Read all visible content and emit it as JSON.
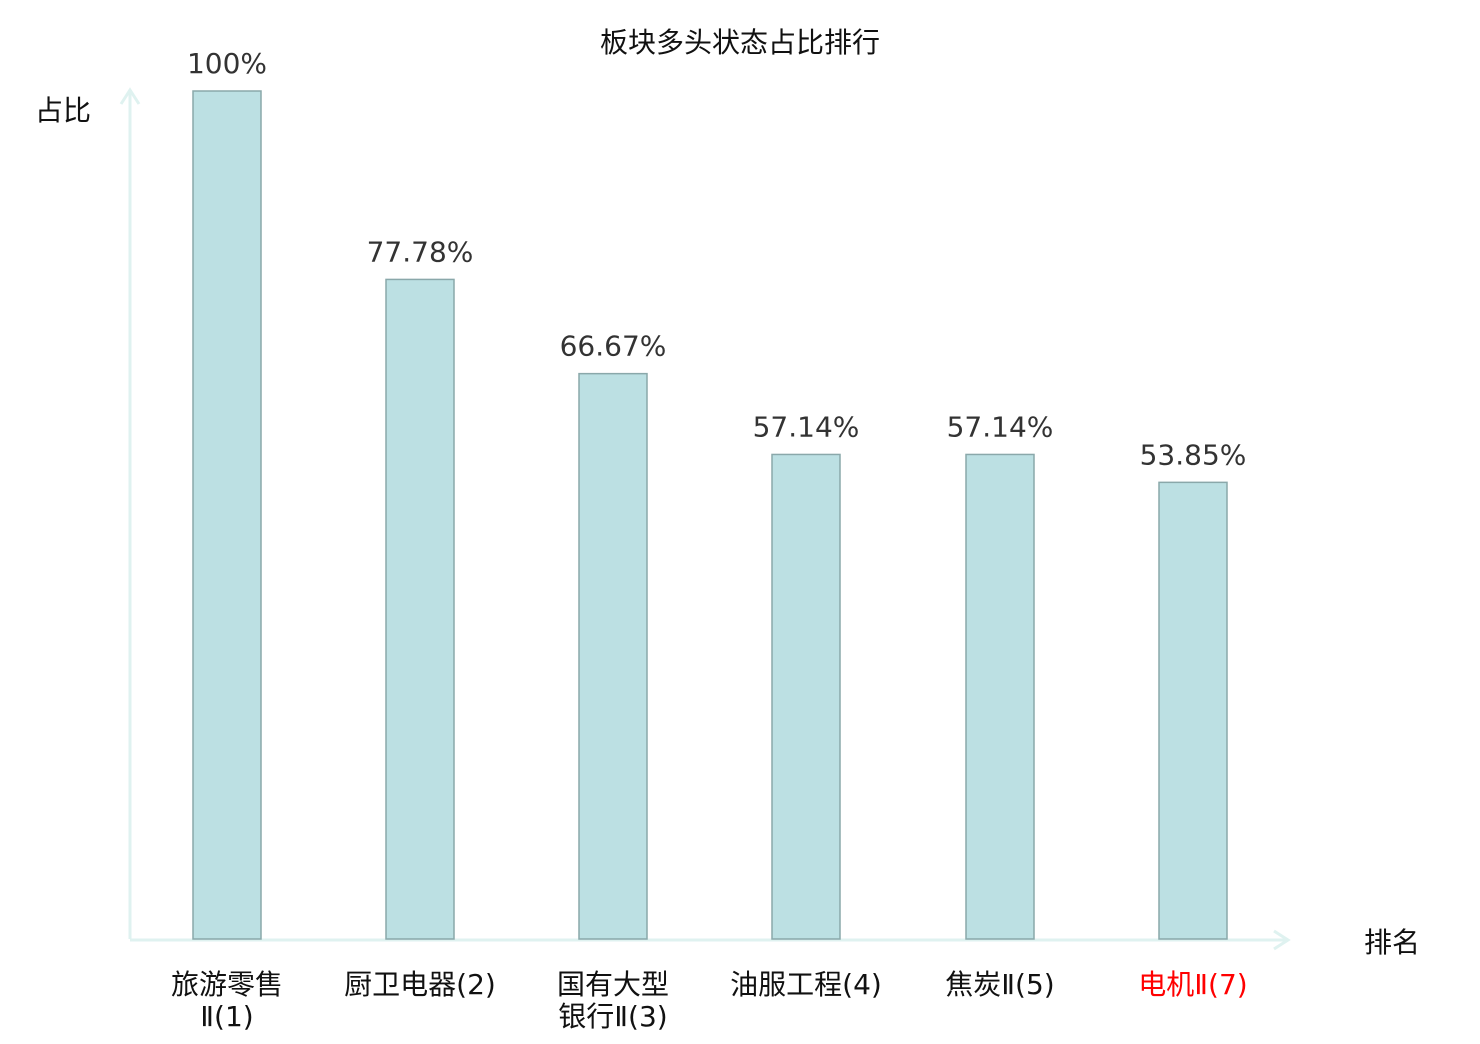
{
  "chart_data": {
    "type": "bar",
    "title": "板块多头状态占比排行",
    "xlabel": "排名",
    "ylabel": "占比",
    "categories": [
      [
        "旅游零售",
        "Ⅱ(1)"
      ],
      [
        "厨卫电器(2)"
      ],
      [
        "国有大型",
        "银行Ⅱ(3)"
      ],
      [
        "油服工程(4)"
      ],
      [
        "焦炭Ⅱ(5)"
      ],
      [
        "电机Ⅱ(7)"
      ]
    ],
    "values": [
      100,
      77.78,
      66.67,
      57.14,
      57.14,
      53.85
    ],
    "data_labels": [
      "100%",
      "77.78%",
      "66.67%",
      "57.14%",
      "57.14%",
      "53.85%"
    ],
    "highlighted_category_index": 5,
    "ylim": [
      0,
      100
    ],
    "grid": false,
    "colors": {
      "bar_fill": "#bce0e3",
      "bar_stroke": "#8aa8aa",
      "axis": "#dff2f0",
      "highlight_label": "#ff0000",
      "text": "#333333"
    }
  }
}
